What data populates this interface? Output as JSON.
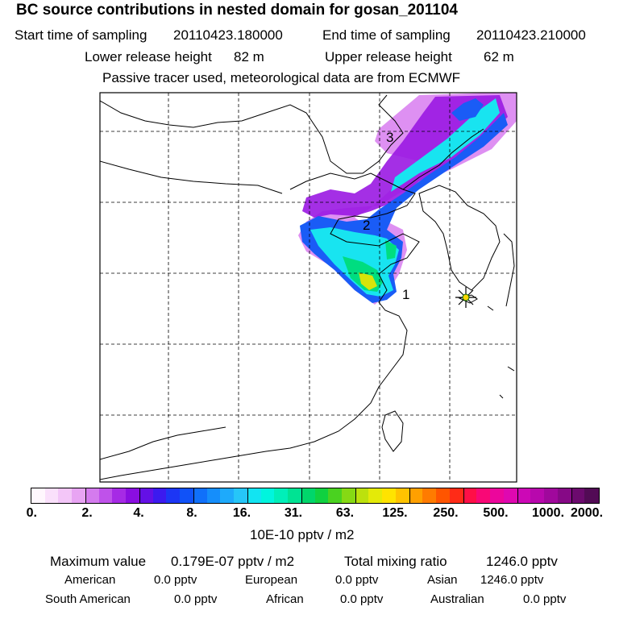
{
  "title": "BC  source contributions in nested domain for gosan_201104",
  "sampling": {
    "start_label": "Start time of sampling",
    "start_value": "20110423.180000",
    "end_label": "End time of sampling",
    "end_value": "20110423.210000"
  },
  "release": {
    "lower_label": "Lower release height",
    "lower_value": "82 m",
    "upper_label": "Upper release height",
    "upper_value": "62 m"
  },
  "info": "Passive tracer used, meteorological data are from ECMWF",
  "markers": [
    "1",
    "2",
    "3"
  ],
  "colorbar": {
    "labels": [
      "0.",
      "2.",
      "4.",
      "8.",
      "16.",
      "31.",
      "63.",
      "125.",
      "250.",
      "500.",
      "1000.",
      "2000."
    ],
    "colors": [
      "#fff7fd",
      "#fae0fb",
      "#f3c6f8",
      "#e8a4f3",
      "#d47bee",
      "#bf52ea",
      "#a62ae5",
      "#8a0ee0",
      "#6410e6",
      "#3c1aef",
      "#1c36f5",
      "#1052f8",
      "#1070fa",
      "#158efb",
      "#1eaafb",
      "#26c6f8",
      "#12e4f2",
      "#00f5de",
      "#00efb9",
      "#00e393",
      "#00d66b",
      "#10d140",
      "#4ad220",
      "#86d914",
      "#bce10d",
      "#e4ea08",
      "#ffe300",
      "#ffc300",
      "#ffa000",
      "#ff7b00",
      "#ff5500",
      "#ff2b17",
      "#ff0f47",
      "#f90876",
      "#ec069c",
      "#df08b0",
      "#cc08b6",
      "#b808ad",
      "#a0089c",
      "#860986",
      "#6c0a6e",
      "#520b55"
    ],
    "unit": "10E-10 pptv / m2"
  },
  "stats": {
    "max_label": "Maximum value",
    "max_value": "0.179E-07 pptv / m2",
    "total_label": "Total mixing ratio",
    "total_value": "1246.0 pptv"
  },
  "contributions": [
    {
      "name": "American",
      "value": "0.0 pptv"
    },
    {
      "name": "European",
      "value": "0.0 pptv"
    },
    {
      "name": "Asian",
      "value": "1246.0 pptv"
    },
    {
      "name": "South American",
      "value": "0.0 pptv"
    },
    {
      "name": "African",
      "value": "0.0 pptv"
    },
    {
      "name": "Australian",
      "value": "0.0 pptv"
    }
  ]
}
